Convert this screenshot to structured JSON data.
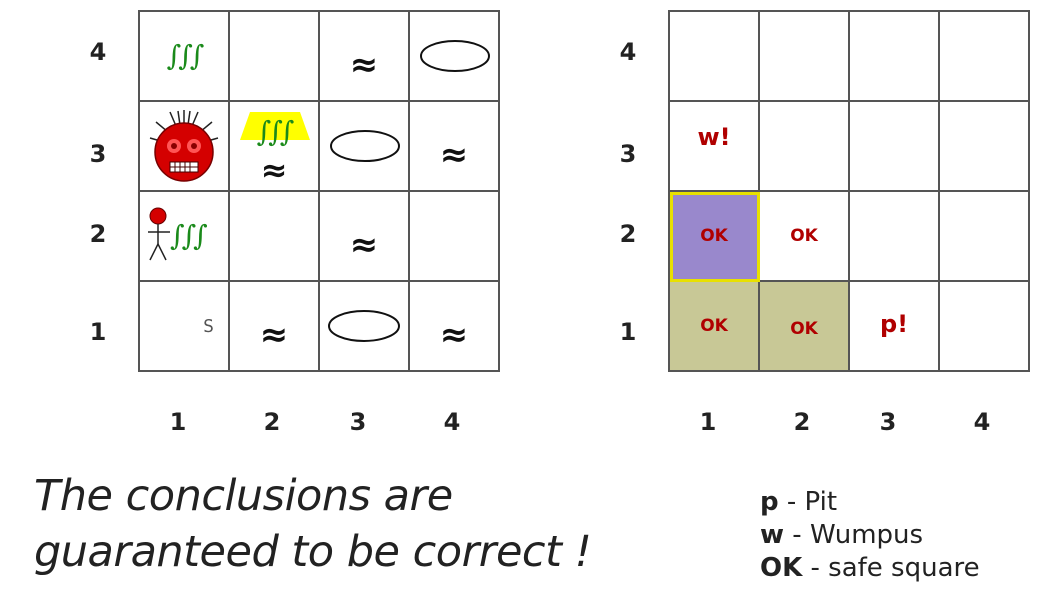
{
  "left_grid": {
    "row_labels": [
      "4",
      "3",
      "2",
      "1"
    ],
    "col_labels": [
      "1",
      "2",
      "3",
      "4"
    ],
    "start_label": "S",
    "stench_symbol": "∫∫∫",
    "breeze_symbol": "≈"
  },
  "right_grid": {
    "row_labels": [
      "4",
      "3",
      "2",
      "1"
    ],
    "col_labels": [
      "1",
      "2",
      "3",
      "4"
    ],
    "marks": {
      "r3c1": "w!",
      "r2c1": "OK",
      "r2c2": "OK",
      "r1c1": "OK",
      "r1c2": "OK",
      "r1c3": "p!"
    },
    "colors": {
      "current": "#9988cc",
      "current_border": "#e8e000",
      "visited": "#c8c896",
      "mark_text": "#b00000"
    }
  },
  "caption": {
    "line1": "The conclusions are",
    "line2": "guaranteed to be correct !"
  },
  "legend": {
    "items": [
      {
        "key": "p",
        "desc": " - Pit"
      },
      {
        "key": "w",
        "desc": " - Wumpus"
      },
      {
        "key": "OK",
        "desc": " - safe square"
      }
    ]
  }
}
